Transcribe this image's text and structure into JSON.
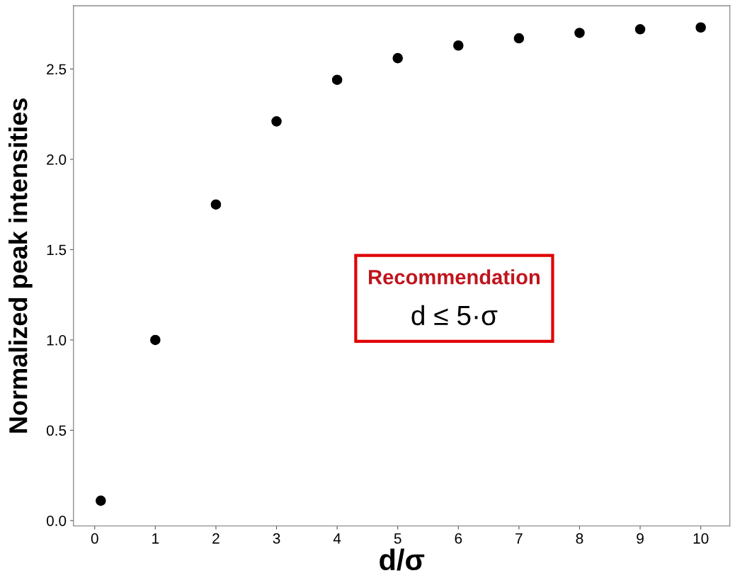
{
  "chart_data": {
    "type": "scatter",
    "xlabel": "d/σ",
    "ylabel": "Normalized peak intensities",
    "x": [
      0.1,
      1,
      2,
      3,
      4,
      5,
      6,
      7,
      8,
      9,
      10
    ],
    "values": [
      0.11,
      1.0,
      1.75,
      2.21,
      2.44,
      2.56,
      2.63,
      2.67,
      2.7,
      2.72,
      2.73
    ],
    "color": "#000000",
    "marker": "circle",
    "xlim": [
      -0.35,
      10.48
    ],
    "ylim": [
      -0.03,
      2.85
    ],
    "xticks": [
      0,
      1,
      2,
      3,
      4,
      5,
      6,
      7,
      8,
      9,
      10
    ],
    "yticks": [
      {
        "value": 0,
        "label": "0.0"
      },
      0.5,
      {
        "value": 1,
        "label": "1.0"
      },
      1.5,
      {
        "value": 2,
        "label": "2.0"
      },
      2.5
    ],
    "grid": false,
    "annotations": [
      "Recommendation",
      "d ≤ 5·σ"
    ]
  }
}
